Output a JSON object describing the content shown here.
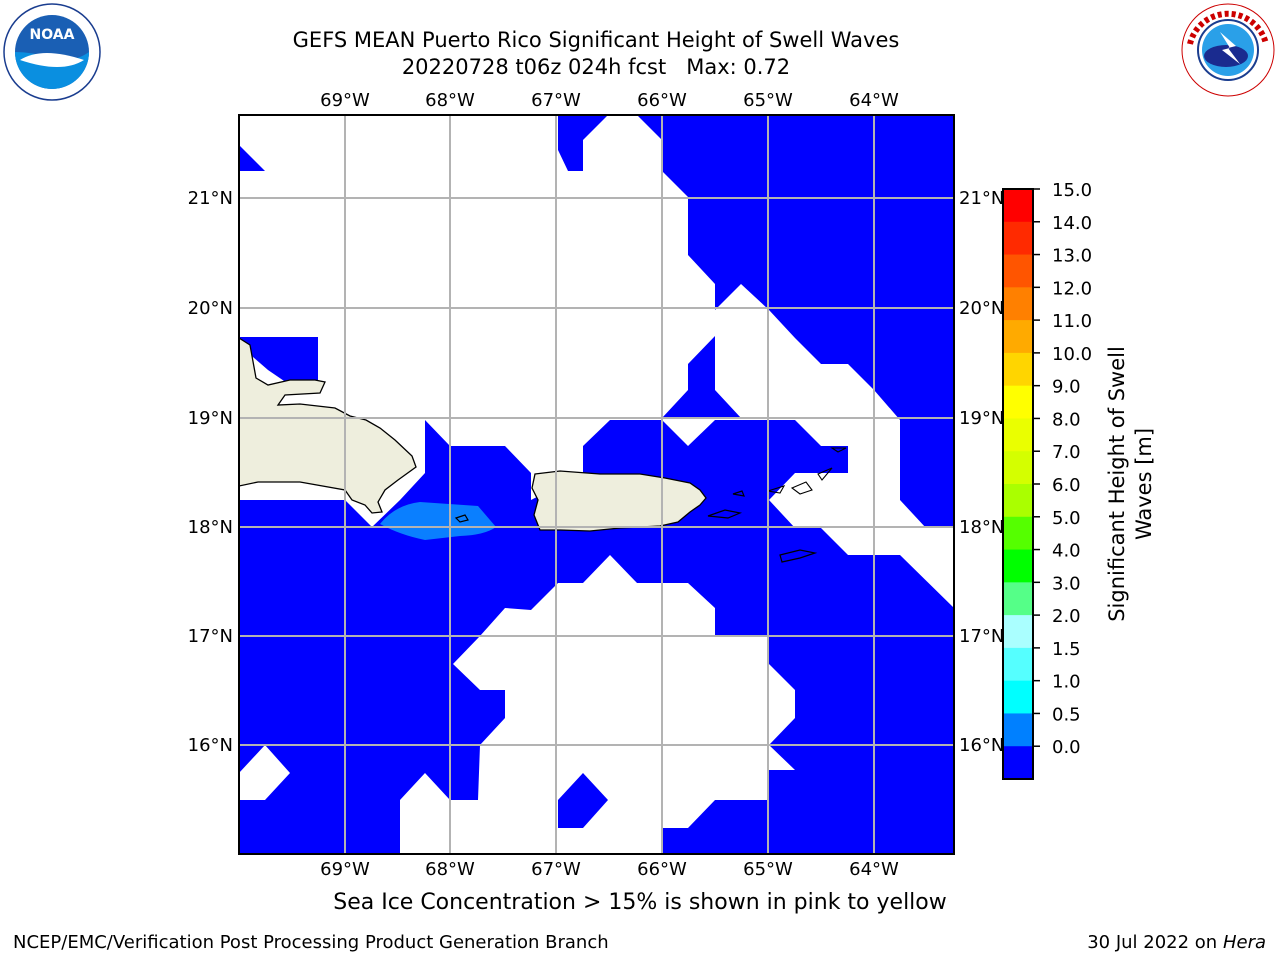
{
  "header": {
    "title_line1": "GEFS MEAN Puerto Rico Significant Height of Swell Waves",
    "title_line2": "20220728 t06z 024h fcst   Max: 0.72"
  },
  "logos": {
    "left": {
      "name": "noaa-logo",
      "text": "NOAA",
      "ring_text": "NATIONAL OCEANIC AND ATMOSPHERIC ADMINISTRATION · U.S. DEPARTMENT OF COMMERCE"
    },
    "right": {
      "name": "nws-logo",
      "ring_text": "NATIONAL WEATHER SERVICE"
    }
  },
  "map": {
    "lon_labels": [
      "69°W",
      "68°W",
      "67°W",
      "66°W",
      "65°W",
      "64°W"
    ],
    "lat_labels": [
      "21°N",
      "20°N",
      "19°N",
      "18°N",
      "17°N",
      "16°N"
    ]
  },
  "colorbar": {
    "label": "Significant Height of Swell Waves [m]",
    "ticks": [
      "15.0",
      "14.0",
      "13.0",
      "12.0",
      "11.0",
      "10.0",
      "9.0",
      "8.0",
      "7.0",
      "6.0",
      "5.0",
      "4.0",
      "3.0",
      "2.0",
      "1.5",
      "1.0",
      "0.5",
      "0.0"
    ],
    "colors": [
      "#ff0000",
      "#ff2a00",
      "#ff5500",
      "#ff8000",
      "#ffaa00",
      "#ffd500",
      "#ffff00",
      "#eaff00",
      "#d4ff00",
      "#aaff00",
      "#55ff00",
      "#00ff00",
      "#55ff88",
      "#aaffff",
      "#55ffff",
      "#00ffff",
      "#0080ff",
      "#0000ff"
    ]
  },
  "colors": {
    "swell_low": "#0000ff",
    "swell_mid": "#0a7fff",
    "land": "#eeeedd"
  },
  "caption": "Sea Ice Concentration > 15% is shown in pink to yellow",
  "footer": {
    "left": "NCEP/EMC/Verification Post Processing Product Generation Branch",
    "right_date": "30 Jul 2022 on ",
    "right_host": "Hera"
  }
}
